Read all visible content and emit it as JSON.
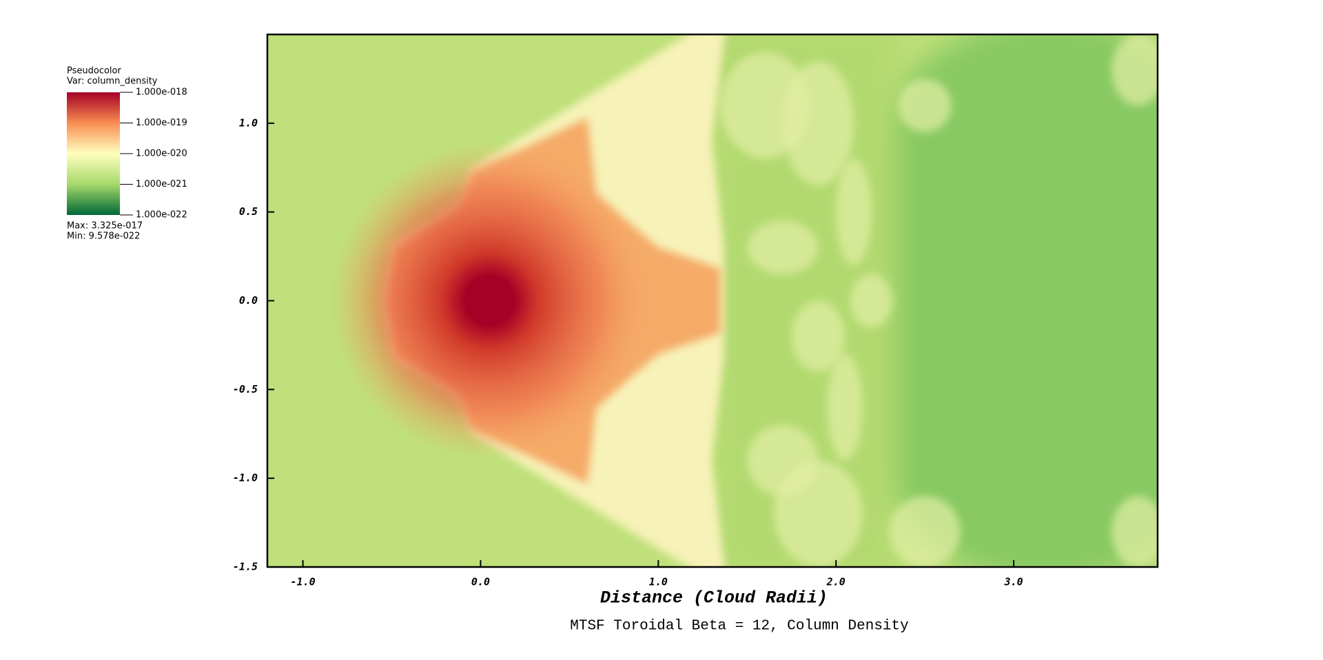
{
  "chart_data": {
    "type": "pseudocolor",
    "legend": {
      "title": "Pseudocolor",
      "var": "Var: column_density",
      "max": "Max:  3.325e-017",
      "min": "Min:  9.578e-022",
      "lim": [
        1e-22,
        1e-18
      ],
      "log": true,
      "colors": [
        "#006837",
        "#a6d96a",
        "#ffffbf",
        "#f88d52",
        "#a50026"
      ],
      "ticks": [
        {
          "value": 1e-18,
          "label": "1.000e-018"
        },
        {
          "value": 1e-19,
          "label": "1.000e-019"
        },
        {
          "value": 1e-20,
          "label": "1.000e-020"
        },
        {
          "value": 1e-21,
          "label": "1.000e-021"
        },
        {
          "value": 1e-22,
          "label": "1.000e-022"
        }
      ]
    },
    "xlabel": "Distance (Cloud Radii)",
    "title": "MTSF Toroidal Beta = 12, Column Density",
    "xlim": [
      -1.2,
      3.81
    ],
    "ylim": [
      -1.5,
      1.5
    ],
    "xticks": [
      {
        "value": -1,
        "label": "-1.0"
      },
      {
        "value": 0,
        "label": "0.0"
      },
      {
        "value": 1,
        "label": "1.0"
      },
      {
        "value": 2,
        "label": "2.0"
      },
      {
        "value": 3,
        "label": "3.0"
      }
    ],
    "yticks": [
      {
        "value": 1,
        "label": "1.0"
      },
      {
        "value": 0.5,
        "label": "0.5"
      },
      {
        "value": 0,
        "label": "0.0"
      },
      {
        "value": -0.5,
        "label": "-0.5"
      },
      {
        "value": -1,
        "label": "-1.0"
      },
      {
        "value": -1.5,
        "label": "-1.5"
      }
    ]
  }
}
